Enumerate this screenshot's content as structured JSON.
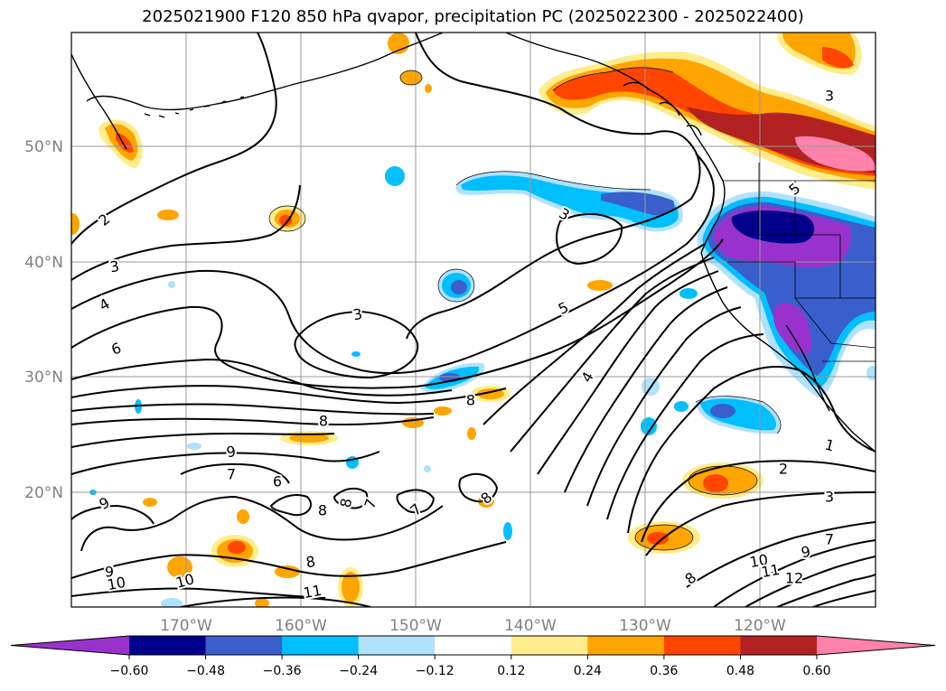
{
  "title": "2025021900 F120 850 hPa qvapor, precipitation PC (2025022300 - 2025022400)",
  "longitude_labels": [
    "170°W",
    "160°W",
    "150°W",
    "140°W",
    "130°W",
    "120°W"
  ],
  "latitude_labels": [
    "50°N",
    "40°N",
    "30°N",
    "20°N"
  ],
  "colorbar": {
    "tick_labels": [
      "−0.60",
      "−0.48",
      "−0.36",
      "−0.24",
      "−0.12",
      "0.12",
      "0.24",
      "0.36",
      "0.48",
      "0.60"
    ],
    "colors": [
      "#9932cc",
      "#00008b",
      "#3a5fcd",
      "#00bfff",
      "#b0e2ff",
      "#ffffff",
      "#ffec8b",
      "#ffa500",
      "#ff4500",
      "#b22222",
      "#ff82ab"
    ]
  },
  "contour_labels": [
    {
      "text": "2"
    },
    {
      "text": "3"
    },
    {
      "text": "4"
    },
    {
      "text": "6"
    },
    {
      "text": "3"
    },
    {
      "text": "5"
    },
    {
      "text": "4"
    },
    {
      "text": "3"
    },
    {
      "text": "3"
    },
    {
      "text": "5"
    },
    {
      "text": "8"
    },
    {
      "text": "8"
    },
    {
      "text": "9"
    },
    {
      "text": "7"
    },
    {
      "text": "6"
    },
    {
      "text": "9"
    },
    {
      "text": "8"
    },
    {
      "text": "8"
    },
    {
      "text": "7"
    },
    {
      "text": "7"
    },
    {
      "text": "8"
    },
    {
      "text": "8"
    },
    {
      "text": "9"
    },
    {
      "text": "10"
    },
    {
      "text": "10"
    },
    {
      "text": "11"
    },
    {
      "text": "1"
    },
    {
      "text": "2"
    },
    {
      "text": "3"
    },
    {
      "text": "7"
    },
    {
      "text": "9"
    },
    {
      "text": "10"
    },
    {
      "text": "11"
    },
    {
      "text": "12"
    },
    {
      "text": "8"
    }
  ]
}
